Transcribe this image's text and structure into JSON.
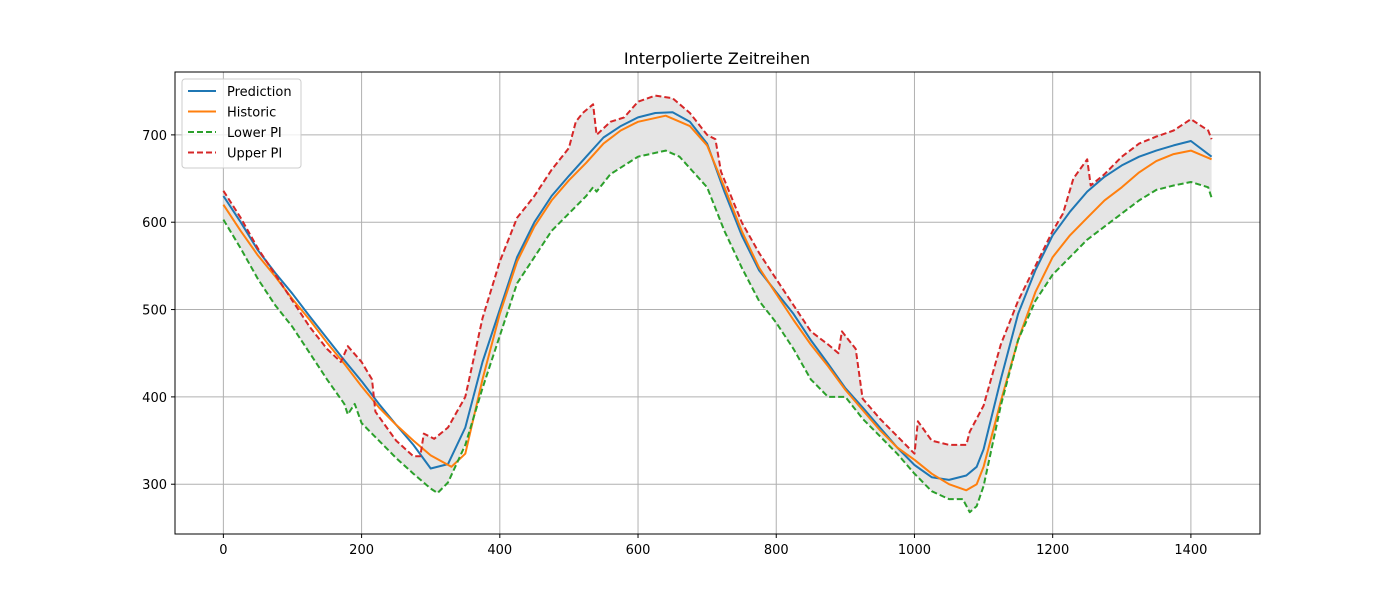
{
  "chart_data": {
    "type": "line",
    "title": "Interpolierte Zeitreihen",
    "xlabel": "",
    "ylabel": "",
    "xlim": [
      -70,
      1500
    ],
    "ylim": [
      243,
      772
    ],
    "x_ticks": [
      0,
      200,
      400,
      600,
      800,
      1000,
      1200,
      1400
    ],
    "x_tick_labels": [
      "0",
      "200",
      "400",
      "600",
      "800",
      "1000",
      "1200",
      "1400"
    ],
    "y_ticks": [
      300,
      400,
      500,
      600,
      700
    ],
    "y_tick_labels": [
      "300",
      "400",
      "500",
      "600",
      "700"
    ],
    "grid": true,
    "legend_position": "upper-left",
    "band": {
      "lower": "Lower PI",
      "upper": "Upper PI",
      "color": "#e5e5e5"
    },
    "series": [
      {
        "name": "Prediction",
        "color": "#1f77b4",
        "style": "solid",
        "x": [
          0,
          25,
          50,
          75,
          100,
          125,
          150,
          175,
          200,
          225,
          250,
          275,
          300,
          325,
          350,
          375,
          400,
          425,
          450,
          475,
          500,
          525,
          550,
          575,
          600,
          625,
          650,
          675,
          700,
          725,
          750,
          775,
          800,
          825,
          850,
          875,
          900,
          925,
          950,
          975,
          1000,
          1025,
          1050,
          1075,
          1090,
          1100,
          1125,
          1150,
          1175,
          1200,
          1225,
          1250,
          1275,
          1300,
          1325,
          1350,
          1375,
          1400,
          1430
        ],
        "y": [
          630,
          600,
          568,
          542,
          518,
          492,
          467,
          442,
          418,
          392,
          368,
          345,
          318,
          323,
          365,
          440,
          500,
          560,
          600,
          630,
          653,
          675,
          697,
          710,
          720,
          725,
          726,
          715,
          690,
          635,
          585,
          545,
          520,
          495,
          465,
          438,
          410,
          388,
          365,
          342,
          322,
          308,
          305,
          310,
          320,
          340,
          420,
          495,
          545,
          585,
          612,
          635,
          652,
          665,
          675,
          682,
          688,
          693,
          675
        ]
      },
      {
        "name": "Historic",
        "color": "#ff7f0e",
        "style": "solid",
        "x": [
          0,
          25,
          50,
          75,
          100,
          125,
          150,
          175,
          200,
          225,
          250,
          275,
          300,
          330,
          350,
          375,
          400,
          425,
          450,
          475,
          500,
          525,
          550,
          575,
          600,
          640,
          675,
          700,
          725,
          750,
          775,
          800,
          825,
          850,
          875,
          900,
          925,
          950,
          975,
          1000,
          1025,
          1050,
          1075,
          1090,
          1100,
          1125,
          1150,
          1175,
          1200,
          1225,
          1250,
          1275,
          1300,
          1325,
          1350,
          1375,
          1400,
          1430
        ],
        "y": [
          620,
          590,
          562,
          538,
          512,
          488,
          462,
          438,
          412,
          388,
          368,
          350,
          333,
          320,
          335,
          420,
          495,
          555,
          595,
          625,
          648,
          668,
          690,
          705,
          715,
          722,
          710,
          688,
          640,
          590,
          548,
          518,
          488,
          460,
          435,
          408,
          385,
          362,
          342,
          328,
          312,
          300,
          293,
          300,
          320,
          395,
          465,
          520,
          560,
          585,
          605,
          625,
          640,
          657,
          670,
          678,
          682,
          672
        ]
      },
      {
        "name": "Lower PI",
        "color": "#2ca02c",
        "style": "dashed",
        "x": [
          0,
          25,
          50,
          75,
          100,
          125,
          150,
          175,
          180,
          190,
          200,
          225,
          250,
          275,
          300,
          310,
          325,
          350,
          375,
          400,
          425,
          450,
          475,
          500,
          525,
          535,
          540,
          560,
          600,
          640,
          660,
          700,
          725,
          750,
          775,
          800,
          825,
          850,
          875,
          900,
          925,
          950,
          975,
          1000,
          1025,
          1050,
          1070,
          1080,
          1090,
          1100,
          1125,
          1150,
          1175,
          1200,
          1225,
          1250,
          1275,
          1300,
          1325,
          1350,
          1375,
          1400,
          1425,
          1430
        ],
        "y": [
          603,
          570,
          535,
          505,
          480,
          450,
          420,
          392,
          380,
          392,
          370,
          350,
          330,
          312,
          295,
          290,
          302,
          345,
          410,
          470,
          530,
          560,
          590,
          610,
          630,
          640,
          635,
          655,
          675,
          682,
          675,
          640,
          590,
          548,
          510,
          485,
          455,
          420,
          400,
          400,
          375,
          355,
          335,
          312,
          292,
          283,
          283,
          268,
          275,
          298,
          390,
          465,
          510,
          540,
          560,
          580,
          595,
          610,
          625,
          637,
          642,
          646,
          640,
          628
        ]
      },
      {
        "name": "Upper PI",
        "color": "#d62728",
        "style": "dashed",
        "x": [
          0,
          25,
          50,
          75,
          100,
          125,
          150,
          170,
          180,
          200,
          215,
          220,
          250,
          275,
          285,
          290,
          305,
          325,
          350,
          375,
          400,
          425,
          450,
          475,
          500,
          510,
          520,
          535,
          540,
          560,
          580,
          600,
          625,
          650,
          675,
          700,
          712,
          720,
          750,
          775,
          800,
          825,
          850,
          875,
          890,
          895,
          915,
          925,
          950,
          975,
          1000,
          1005,
          1025,
          1050,
          1075,
          1080,
          1100,
          1125,
          1150,
          1175,
          1200,
          1215,
          1230,
          1250,
          1255,
          1275,
          1300,
          1325,
          1350,
          1375,
          1400,
          1425,
          1430
        ],
        "y": [
          636,
          605,
          570,
          540,
          510,
          480,
          455,
          440,
          458,
          440,
          420,
          383,
          350,
          332,
          332,
          358,
          352,
          365,
          400,
          490,
          555,
          605,
          630,
          660,
          685,
          715,
          725,
          735,
          700,
          715,
          720,
          738,
          745,
          742,
          725,
          700,
          695,
          658,
          600,
          565,
          535,
          505,
          475,
          460,
          450,
          475,
          455,
          398,
          375,
          355,
          335,
          372,
          350,
          345,
          345,
          360,
          390,
          460,
          510,
          550,
          590,
          610,
          650,
          672,
          642,
          655,
          675,
          690,
          698,
          705,
          718,
          705,
          695
        ]
      }
    ]
  }
}
